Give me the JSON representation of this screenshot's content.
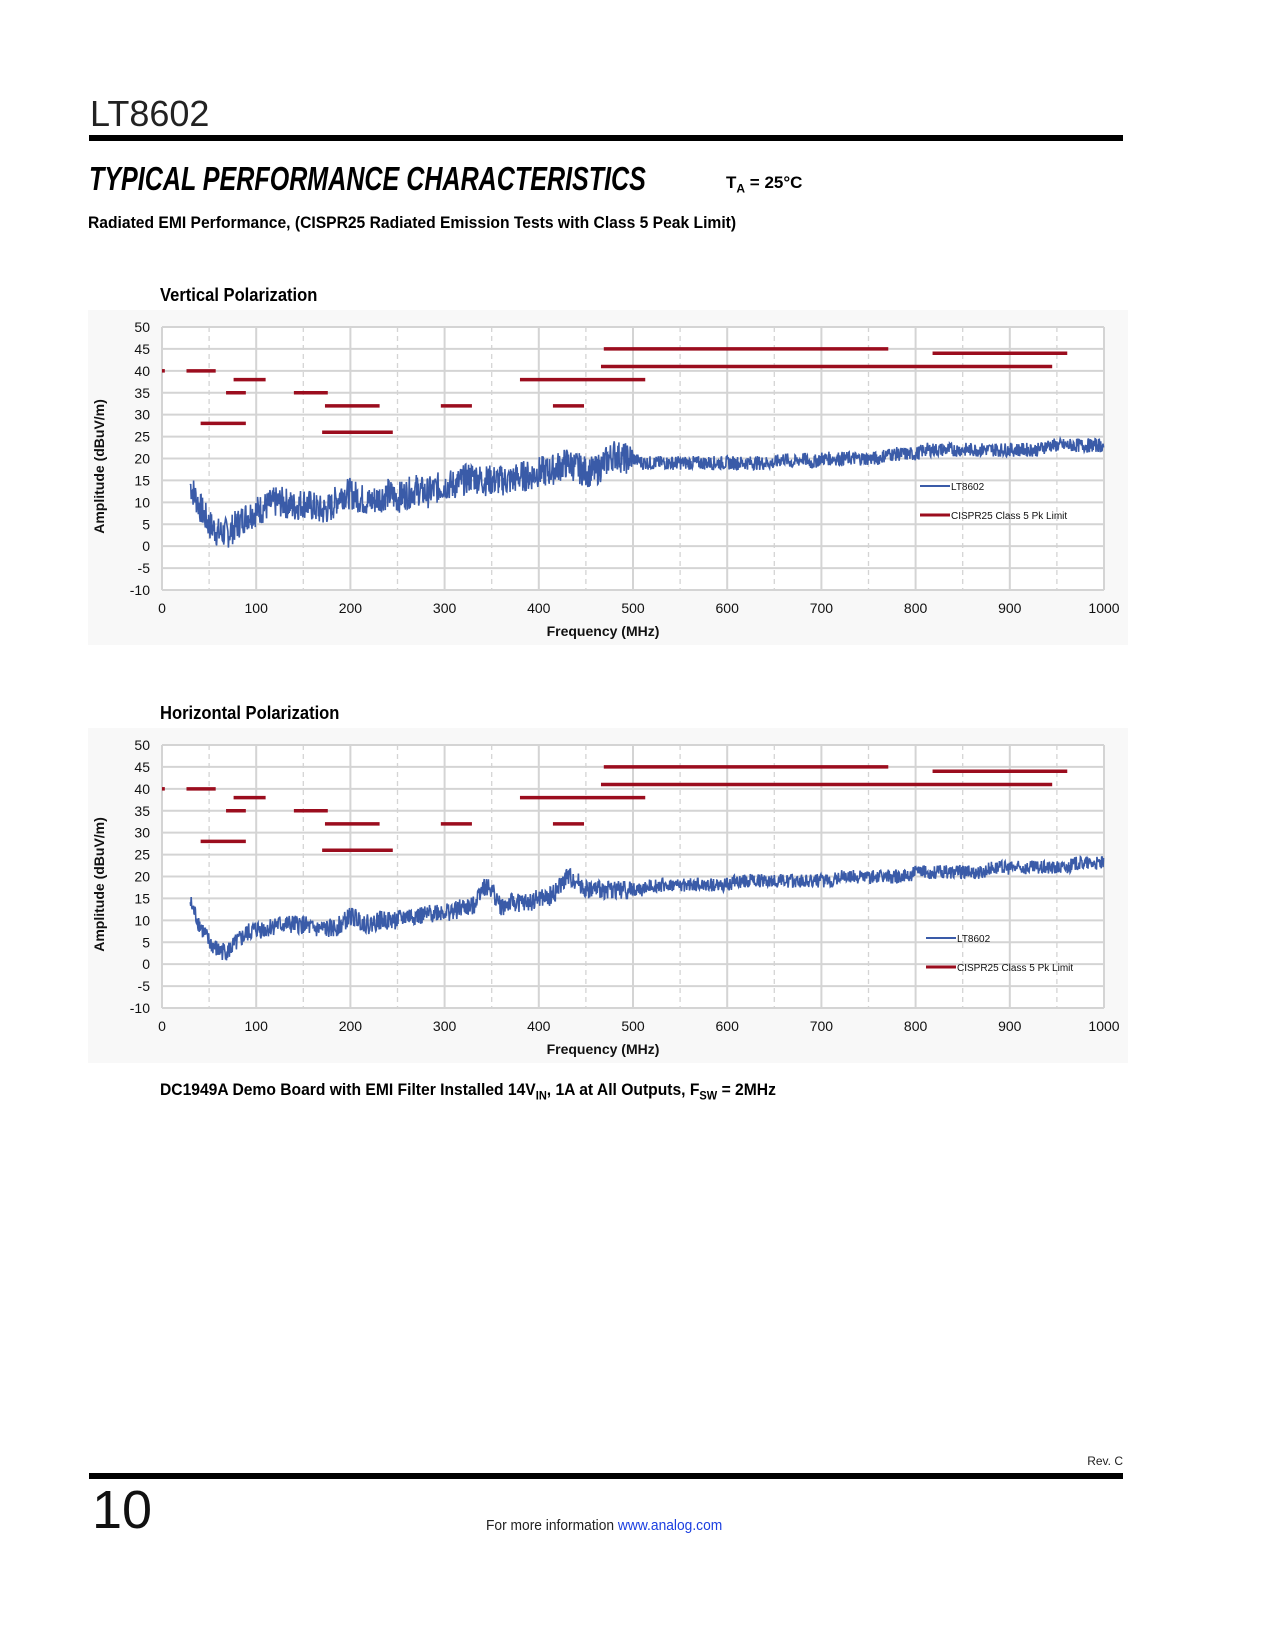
{
  "header": {
    "part_number": "LT8602",
    "section_title": "TYPICAL PERFORMANCE CHARACTERISTICS",
    "condition_prefix": "T",
    "condition_sub": "A",
    "condition_value": "= 25°C",
    "subtitle": "Radiated EMI Performance, (CISPR25 Radiated Emission Tests with Class 5 Peak Limit)"
  },
  "caption": {
    "text1": "DC1949A Demo Board with EMI Filter Installed 14V",
    "sub1": "IN",
    "text2": ", 1A at All Outputs, F",
    "sub2": "SW",
    "text3": " = 2MHz"
  },
  "footer": {
    "revision": "Rev. C",
    "page_number": "10",
    "more_info": "For more information",
    "link": "www.analog.com"
  },
  "colors": {
    "trace": "#3a5ba8",
    "limit": "#9b0d1e",
    "grid": "#d4d4d4",
    "bg": "#f8f8f8"
  },
  "chart_data": [
    {
      "type": "line",
      "title": "Vertical Polarization",
      "xlabel": "Frequency (MHz)",
      "ylabel": "Amplitude (dBuV/m)",
      "xlim": [
        0,
        1000
      ],
      "ylim": [
        -10,
        50
      ],
      "xticks": [
        "0",
        "100",
        "200",
        "300",
        "400",
        "500",
        "600",
        "700",
        "800",
        "900",
        "1000"
      ],
      "yticks": [
        "50",
        "45",
        "40",
        "35",
        "30",
        "25",
        "20",
        "15",
        "10",
        "5",
        "0",
        "-5",
        "-10"
      ],
      "grid": true,
      "legend_position": "right",
      "legend": [
        "LT8602",
        "CISPR25 Class 5 Pk Limit"
      ],
      "series": [
        {
          "name": "LT8602",
          "x_start": 30,
          "x_step": 10,
          "values": [
            14,
            9,
            5,
            3,
            3,
            5,
            7,
            8,
            9,
            10,
            10,
            9,
            10,
            9,
            8,
            9,
            12,
            12,
            11,
            10,
            11,
            12,
            11,
            12,
            13,
            12,
            13,
            14,
            14,
            15,
            16,
            15,
            15,
            15,
            15,
            16,
            16,
            17,
            17,
            18,
            19,
            18,
            17,
            17,
            19,
            21,
            20,
            20,
            19,
            19,
            19,
            19,
            19,
            19,
            19,
            19,
            19,
            19,
            19,
            19,
            19,
            19,
            19,
            20,
            19,
            20,
            19,
            20,
            20,
            20,
            20,
            20,
            20,
            20,
            21,
            21,
            21,
            21,
            22,
            22,
            22,
            22,
            22,
            22,
            22,
            22,
            22,
            22,
            22,
            22,
            22,
            23,
            23,
            23,
            23,
            23,
            23,
            23
          ]
        }
      ],
      "limits": [
        {
          "x": [
            0,
            3
          ],
          "y": 40
        },
        {
          "x": [
            26,
            57
          ],
          "y": 40
        },
        {
          "x": [
            76,
            110
          ],
          "y": 38
        },
        {
          "x": [
            68,
            89
          ],
          "y": 35
        },
        {
          "x": [
            41,
            89
          ],
          "y": 28
        },
        {
          "x": [
            140,
            176
          ],
          "y": 35
        },
        {
          "x": [
            173,
            231
          ],
          "y": 32
        },
        {
          "x": [
            170,
            245
          ],
          "y": 26
        },
        {
          "x": [
            296,
            329
          ],
          "y": 32
        },
        {
          "x": [
            380,
            513
          ],
          "y": 38
        },
        {
          "x": [
            415,
            448
          ],
          "y": 32
        },
        {
          "x": [
            469,
            771
          ],
          "y": 45
        },
        {
          "x": [
            466,
            945
          ],
          "y": 41
        },
        {
          "x": [
            818,
            961
          ],
          "y": 44
        }
      ]
    },
    {
      "type": "line",
      "title": "Horizontal Polarization",
      "xlabel": "Frequency (MHz)",
      "ylabel": "Amplitude (dBuV/m)",
      "xlim": [
        0,
        1000
      ],
      "ylim": [
        -10,
        50
      ],
      "xticks": [
        "0",
        "100",
        "200",
        "300",
        "400",
        "500",
        "600",
        "700",
        "800",
        "900",
        "1000"
      ],
      "yticks": [
        "50",
        "45",
        "40",
        "35",
        "30",
        "25",
        "20",
        "15",
        "10",
        "5",
        "0",
        "-5",
        "-10"
      ],
      "grid": true,
      "legend_position": "right",
      "legend": [
        "LT8602",
        "CISPR25 Class 5 Pk Limit"
      ],
      "series": [
        {
          "name": "LT8602",
          "x_start": 30,
          "x_step": 10,
          "values": [
            14,
            9,
            5,
            3,
            3,
            5,
            7,
            8,
            8,
            9,
            9,
            9,
            9,
            8,
            8,
            8,
            9,
            11,
            10,
            9,
            10,
            10,
            10,
            11,
            11,
            11,
            12,
            12,
            12,
            13,
            13,
            18,
            17,
            13,
            14,
            14,
            14,
            15,
            15,
            17,
            20,
            19,
            17,
            17,
            17,
            17,
            17,
            17,
            17,
            18,
            18,
            18,
            18,
            18,
            18,
            18,
            18,
            18,
            19,
            19,
            19,
            19,
            19,
            19,
            19,
            19,
            19,
            19,
            19,
            20,
            20,
            20,
            20,
            20,
            20,
            20,
            20,
            21,
            21,
            21,
            21,
            21,
            21,
            21,
            21,
            22,
            22,
            22,
            22,
            22,
            22,
            22,
            22,
            22,
            23,
            23,
            23,
            23
          ]
        }
      ],
      "limits": [
        {
          "x": [
            0,
            3
          ],
          "y": 40
        },
        {
          "x": [
            26,
            57
          ],
          "y": 40
        },
        {
          "x": [
            76,
            110
          ],
          "y": 38
        },
        {
          "x": [
            68,
            89
          ],
          "y": 35
        },
        {
          "x": [
            41,
            89
          ],
          "y": 28
        },
        {
          "x": [
            140,
            176
          ],
          "y": 35
        },
        {
          "x": [
            173,
            231
          ],
          "y": 32
        },
        {
          "x": [
            170,
            245
          ],
          "y": 26
        },
        {
          "x": [
            296,
            329
          ],
          "y": 32
        },
        {
          "x": [
            380,
            513
          ],
          "y": 38
        },
        {
          "x": [
            415,
            448
          ],
          "y": 32
        },
        {
          "x": [
            469,
            771
          ],
          "y": 45
        },
        {
          "x": [
            466,
            945
          ],
          "y": 41
        },
        {
          "x": [
            818,
            961
          ],
          "y": 44
        }
      ]
    }
  ]
}
